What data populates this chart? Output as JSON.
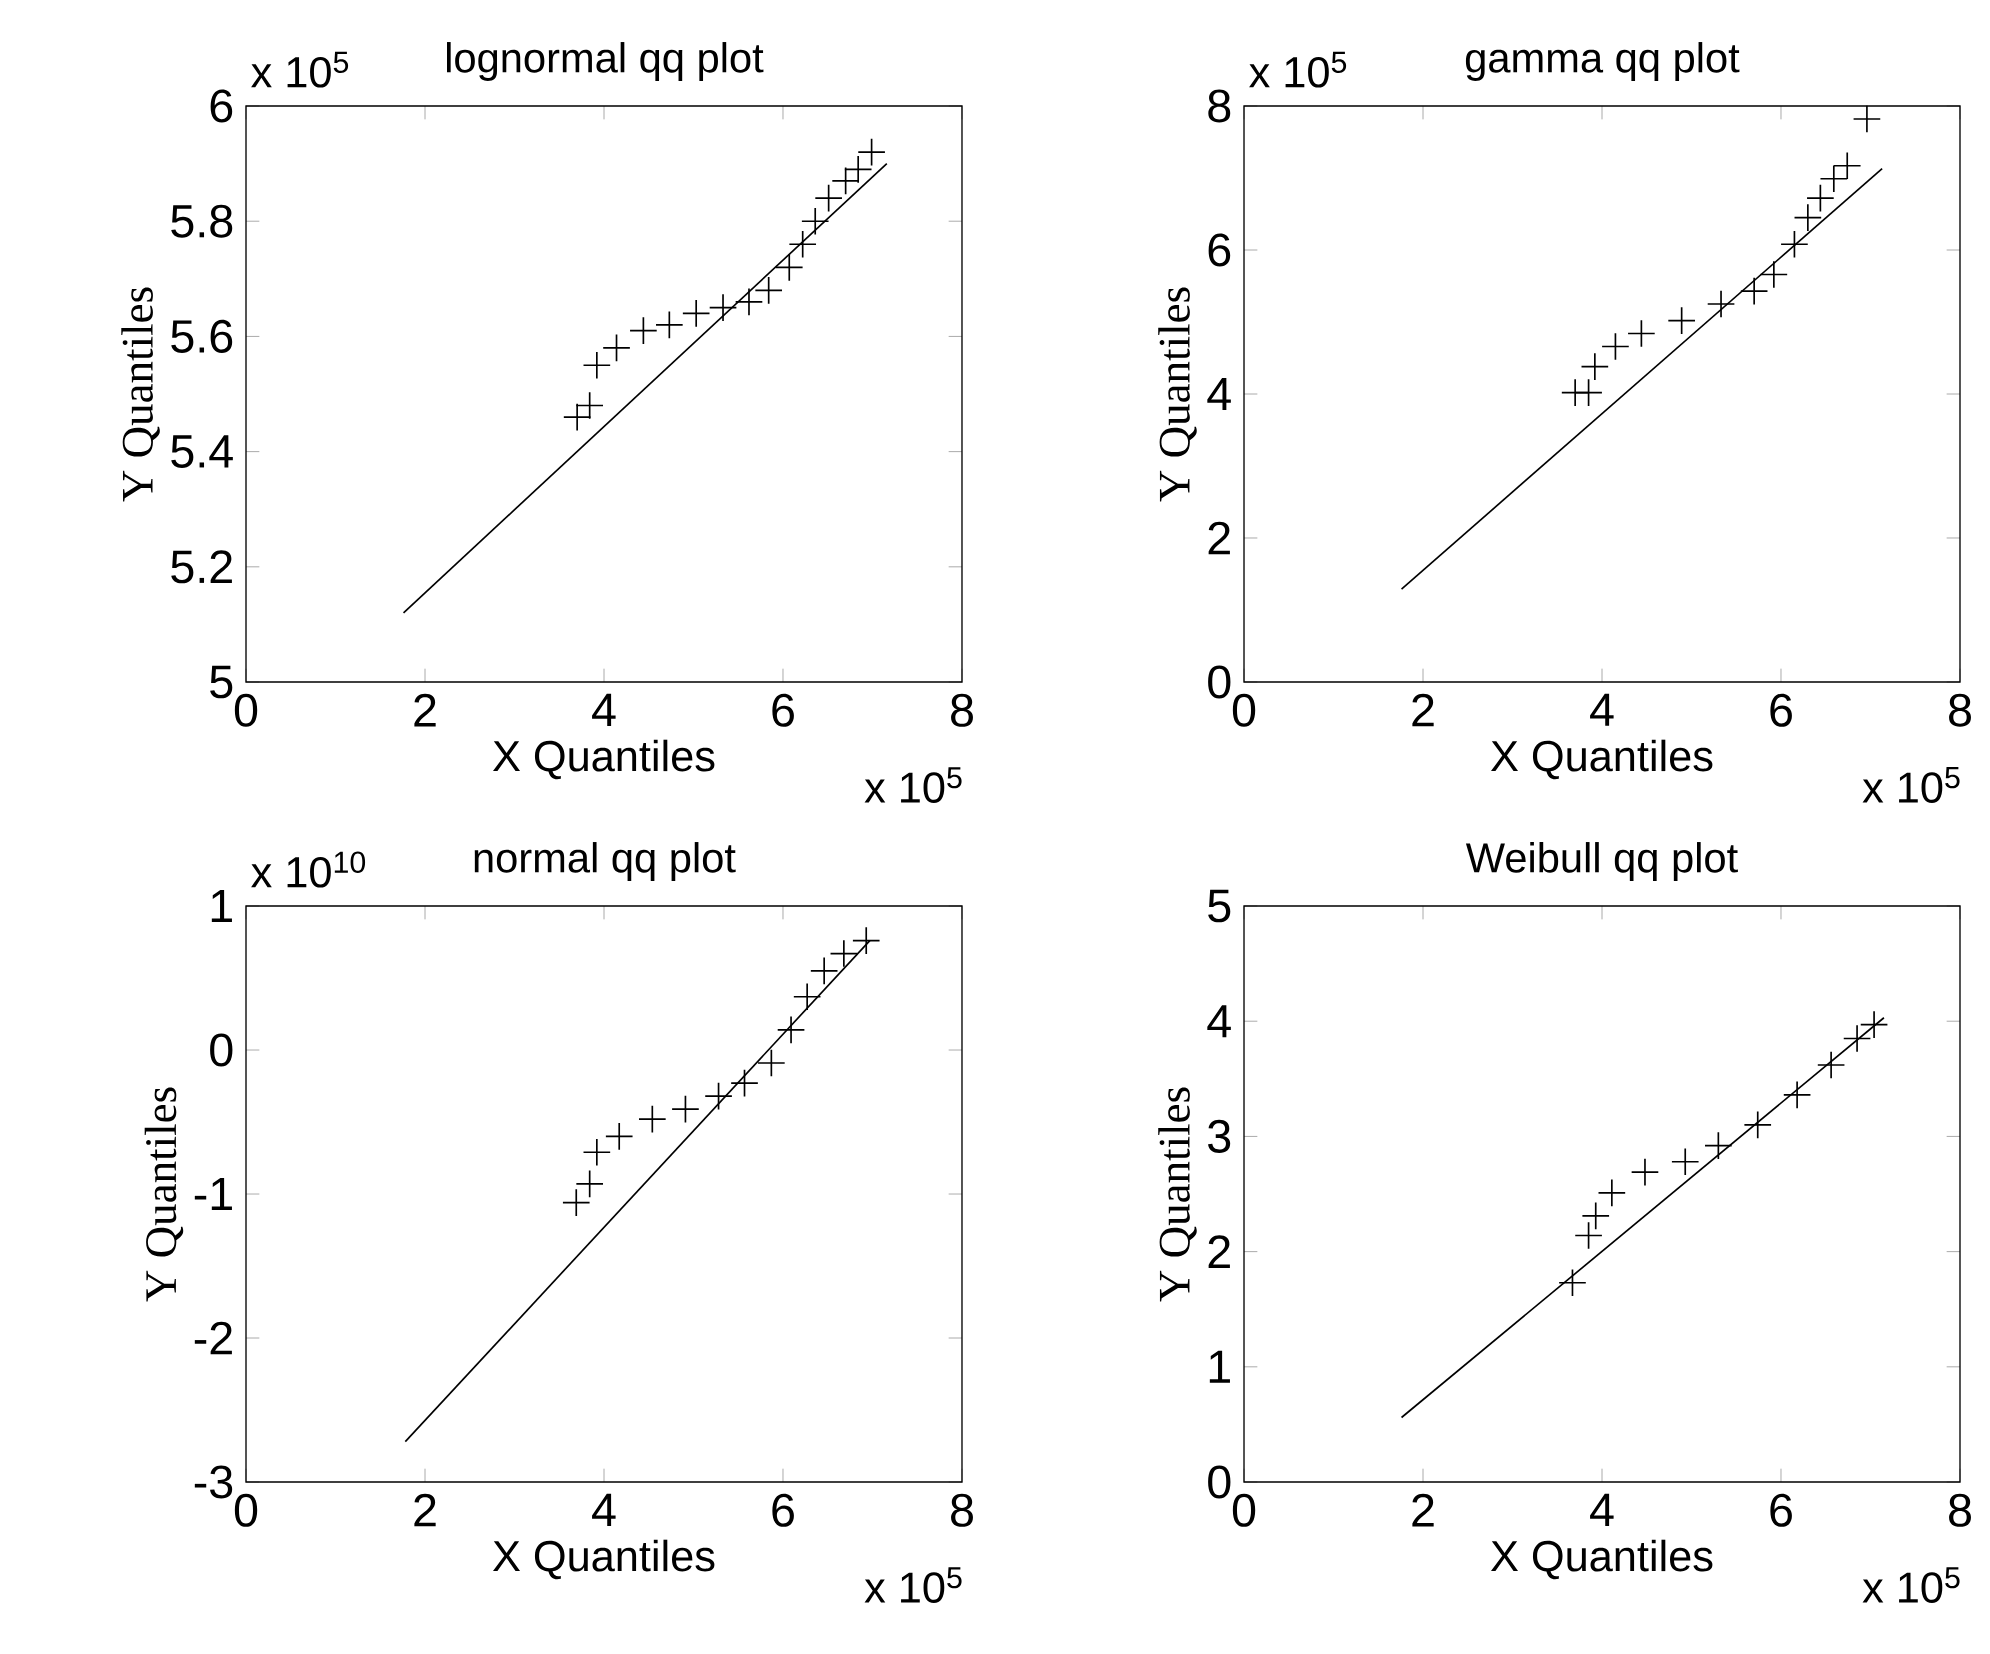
{
  "chart_data": [
    {
      "type": "scatter",
      "title": "lognormal qq plot",
      "xlabel": "X Quantiles",
      "ylabel": "Y Quantiles",
      "annotations": [
        "x 10$^{5}$",
        "x 10$^{5}$"
      ],
      "xlim": [
        0,
        8
      ],
      "xticks": [
        0,
        2,
        4,
        6,
        8
      ],
      "ylim": [
        5,
        6
      ],
      "yticks": [
        5,
        5.2,
        5.4,
        5.6,
        5.8,
        6
      ],
      "series": [
        {
          "marker": "cross",
          "color": "#000000",
          "x": [
            3.7,
            3.84,
            3.92,
            4.14,
            4.44,
            4.73,
            5.03,
            5.33,
            5.62,
            5.84,
            6.07,
            6.22,
            6.36,
            6.51,
            6.7,
            6.84,
            6.99
          ],
          "values": [
            5.46,
            5.48,
            5.55,
            5.58,
            5.61,
            5.62,
            5.64,
            5.65,
            5.66,
            5.68,
            5.72,
            5.76,
            5.8,
            5.84,
            5.87,
            5.89,
            5.92
          ]
        },
        {
          "type": "line",
          "color": "#000000",
          "x": [
            1.76,
            7.16
          ],
          "values": [
            5.12,
            5.9
          ]
        }
      ]
    },
    {
      "type": "scatter",
      "title": "gamma qq plot",
      "xlabel": "X Quantiles",
      "ylabel": "Y Quantiles",
      "annotations": [
        "x 10$^{5}$",
        "x 10$^{5}$"
      ],
      "xlim": [
        0,
        8
      ],
      "xticks": [
        0,
        2,
        4,
        6,
        8
      ],
      "ylim": [
        0,
        8
      ],
      "yticks": [
        0,
        2,
        4,
        6,
        8
      ],
      "series": [
        {
          "marker": "cross",
          "color": "#000000",
          "x": [
            3.7,
            3.85,
            3.92,
            4.15,
            4.44,
            4.89,
            5.33,
            5.7,
            5.92,
            6.15,
            6.3,
            6.44,
            6.59,
            6.74,
            6.96
          ],
          "values": [
            4.02,
            4.02,
            4.38,
            4.66,
            4.84,
            5.02,
            5.25,
            5.43,
            5.66,
            6.08,
            6.45,
            6.72,
            6.99,
            7.17,
            7.82
          ]
        },
        {
          "type": "line",
          "color": "#000000",
          "x": [
            1.76,
            7.13
          ],
          "values": [
            1.29,
            7.13
          ]
        }
      ]
    },
    {
      "type": "scatter",
      "title": "normal qq plot",
      "xlabel": "X Quantiles",
      "ylabel": "Y Quantiles",
      "annotations": [
        "x 10$^{10}$",
        "x 10$^{5}$"
      ],
      "xlim": [
        0,
        8
      ],
      "xticks": [
        0,
        2,
        4,
        6,
        8
      ],
      "ylim": [
        -3,
        1
      ],
      "yticks": [
        -3,
        -2,
        -1,
        0,
        1
      ],
      "series": [
        {
          "marker": "cross",
          "color": "#000000",
          "x": [
            3.69,
            3.84,
            3.92,
            4.17,
            4.54,
            4.91,
            5.28,
            5.57,
            5.87,
            6.09,
            6.27,
            6.46,
            6.68,
            6.93
          ],
          "values": [
            -1.06,
            -0.93,
            -0.71,
            -0.6,
            -0.48,
            -0.41,
            -0.32,
            -0.23,
            -0.09,
            0.14,
            0.37,
            0.55,
            0.67,
            0.76
          ]
        },
        {
          "type": "line",
          "color": "#000000",
          "x": [
            1.78,
            6.97
          ],
          "values": [
            -2.72,
            0.76
          ]
        }
      ]
    },
    {
      "type": "scatter",
      "title": "Weibull qq plot",
      "xlabel": "X Quantiles",
      "ylabel": "Y Quantiles",
      "annotations": [
        "x 10$^{5}$"
      ],
      "xlim": [
        0,
        8
      ],
      "xticks": [
        0,
        2,
        4,
        6,
        8
      ],
      "ylim": [
        0,
        5
      ],
      "yticks": [
        0,
        1,
        2,
        3,
        4,
        5
      ],
      "series": [
        {
          "marker": "cross",
          "color": "#000000",
          "x": [
            3.67,
            3.85,
            3.93,
            4.11,
            4.48,
            4.93,
            5.3,
            5.74,
            6.18,
            6.56,
            6.85,
            7.04
          ],
          "values": [
            1.73,
            2.14,
            2.31,
            2.51,
            2.69,
            2.78,
            2.92,
            3.1,
            3.36,
            3.62,
            3.85,
            3.97
          ]
        },
        {
          "type": "line",
          "color": "#000000",
          "x": [
            1.76,
            7.15
          ],
          "values": [
            0.56,
            4.03
          ]
        }
      ]
    }
  ]
}
